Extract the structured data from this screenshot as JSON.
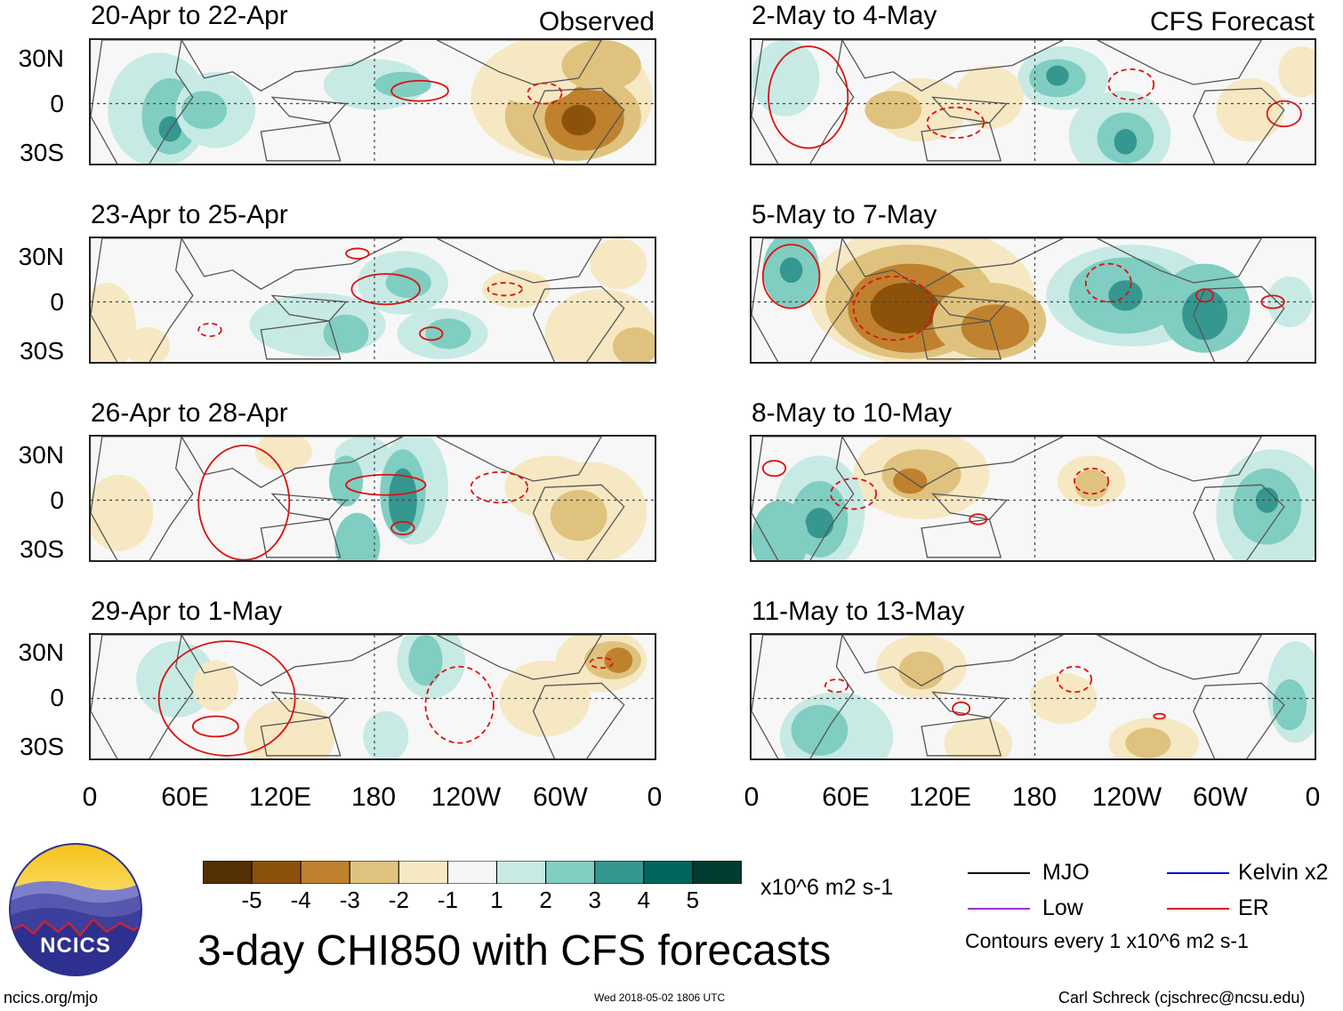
{
  "panels_left_header": "Observed",
  "panels_right_header": "CFS Forecast",
  "panels": [
    {
      "id": "p1",
      "title": "20-Apr to 22-Apr",
      "column": "left",
      "row": 0
    },
    {
      "id": "p2",
      "title": "23-Apr to 25-Apr",
      "column": "left",
      "row": 1
    },
    {
      "id": "p3",
      "title": "26-Apr to 28-Apr",
      "column": "left",
      "row": 2
    },
    {
      "id": "p4",
      "title": "29-Apr to 1-May",
      "column": "left",
      "row": 3
    },
    {
      "id": "p5",
      "title": "2-May to 4-May",
      "column": "right",
      "row": 0
    },
    {
      "id": "p6",
      "title": "5-May to 7-May",
      "column": "right",
      "row": 1
    },
    {
      "id": "p7",
      "title": "8-May to 10-May",
      "column": "right",
      "row": 2
    },
    {
      "id": "p8",
      "title": "11-May to 13-May",
      "column": "right",
      "row": 3
    }
  ],
  "lat_labels": [
    "30N",
    "0",
    "30S"
  ],
  "lon_labels": [
    "0",
    "60E",
    "120E",
    "180",
    "120W",
    "60W",
    "0"
  ],
  "colorbar": {
    "colors": [
      "#543005",
      "#8c510a",
      "#bf812d",
      "#dfc27d",
      "#f6e8c3",
      "#f5f5f5",
      "#c7eae5",
      "#80cdc1",
      "#35978f",
      "#01665e",
      "#003c30"
    ],
    "labels": [
      "-5",
      "-4",
      "-3",
      "-2",
      "-1",
      "1",
      "2",
      "3",
      "4",
      "5"
    ],
    "units": "x10^6 m2 s-1"
  },
  "legend": {
    "items": [
      {
        "label": "MJO",
        "color": "#000000",
        "style": "solid"
      },
      {
        "label": "Kelvin x2",
        "color": "#0000cc",
        "style": "solid"
      },
      {
        "label": "Low",
        "color": "#9933cc",
        "style": "solid"
      },
      {
        "label": "ER",
        "color": "#dd1111",
        "style": "solid"
      }
    ],
    "contour_note": "Contours every 1 x10^6 m2 s-1"
  },
  "main_title": "3-day CHI850 with CFS forecasts",
  "logo_text": "NCICS",
  "url": "ncics.org/mjo",
  "timestamp": "Wed 2018-05-02 1806 UTC",
  "credit": "Carl Schreck (cjschrec@ncsu.edu)"
}
